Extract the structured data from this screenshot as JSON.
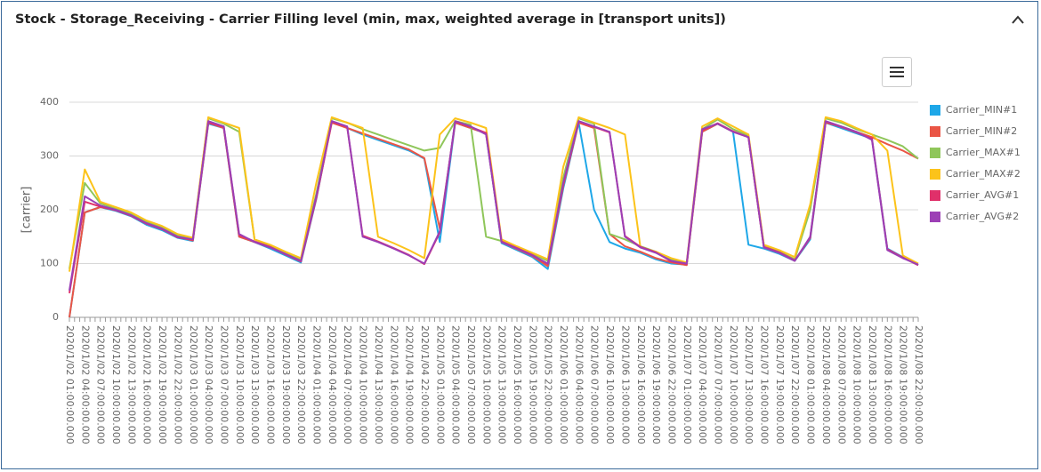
{
  "header": {
    "title": "Stock - Storage_Receiving - Carrier Filling level (min, max, weighted average in [transport units])"
  },
  "chart_data": {
    "type": "line",
    "ylabel": "[carrier]",
    "ylim": [
      0,
      400
    ],
    "yticks": [
      0,
      100,
      200,
      300,
      400
    ],
    "grid": true,
    "legend": "right",
    "categories": [
      "2020/1/02 01:00:00.000",
      "2020/1/02 04:00:00.000",
      "2020/1/02 07:00:00.000",
      "2020/1/02 10:00:00.000",
      "2020/1/02 13:00:00.000",
      "2020/1/02 16:00:00.000",
      "2020/1/02 19:00:00.000",
      "2020/1/02 22:00:00.000",
      "2020/1/03 01:00:00.000",
      "2020/1/03 04:00:00.000",
      "2020/1/03 07:00:00.000",
      "2020/1/03 10:00:00.000",
      "2020/1/03 13:00:00.000",
      "2020/1/03 16:00:00.000",
      "2020/1/03 19:00:00.000",
      "2020/1/03 22:00:00.000",
      "2020/1/04 01:00:00.000",
      "2020/1/04 04:00:00.000",
      "2020/1/04 07:00:00.000",
      "2020/1/04 10:00:00.000",
      "2020/1/04 13:00:00.000",
      "2020/1/04 16:00:00.000",
      "2020/1/04 19:00:00.000",
      "2020/1/04 22:00:00.000",
      "2020/1/05 01:00:00.000",
      "2020/1/05 04:00:00.000",
      "2020/1/05 07:00:00.000",
      "2020/1/05 10:00:00.000",
      "2020/1/05 13:00:00.000",
      "2020/1/05 16:00:00.000",
      "2020/1/05 19:00:00.000",
      "2020/1/05 22:00:00.000",
      "2020/1/06 01:00:00.000",
      "2020/1/06 04:00:00.000",
      "2020/1/06 07:00:00.000",
      "2020/1/06 10:00:00.000",
      "2020/1/06 13:00:00.000",
      "2020/1/06 16:00:00.000",
      "2020/1/06 19:00:00.000",
      "2020/1/06 22:00:00.000",
      "2020/1/07 01:00:00.000",
      "2020/1/07 04:00:00.000",
      "2020/1/07 07:00:00.000",
      "2020/1/07 10:00:00.000",
      "2020/1/07 13:00:00.000",
      "2020/1/07 16:00:00.000",
      "2020/1/07 19:00:00.000",
      "2020/1/07 22:00:00.000",
      "2020/1/08 01:00:00.000",
      "2020/1/08 04:00:00.000",
      "2020/1/08 07:00:00.000",
      "2020/1/08 10:00:00.000",
      "2020/1/08 13:00:00.000",
      "2020/1/08 16:00:00.000",
      "2020/1/08 19:00:00.000",
      "2020/1/08 22:00:00.000"
    ],
    "series": [
      {
        "name": "Carrier_MIN#1",
        "color": "#1ea7e8",
        "values": [
          0,
          195,
          205,
          198,
          188,
          172,
          162,
          148,
          142,
          360,
          352,
          150,
          140,
          128,
          115,
          102,
          220,
          365,
          352,
          340,
          330,
          320,
          310,
          295,
          140,
          362,
          352,
          342,
          138,
          125,
          112,
          90,
          240,
          362,
          200,
          140,
          128,
          120,
          108,
          100,
          98,
          345,
          360,
          345,
          135,
          128,
          118,
          105,
          145,
          362,
          352,
          342,
          332,
          128,
          112,
          97
        ]
      },
      {
        "name": "Carrier_MIN#2",
        "color": "#ea5545",
        "values": [
          0,
          195,
          205,
          200,
          190,
          175,
          165,
          150,
          143,
          362,
          352,
          150,
          140,
          130,
          118,
          104,
          222,
          362,
          352,
          342,
          332,
          322,
          312,
          296,
          165,
          362,
          352,
          342,
          140,
          127,
          114,
          95,
          245,
          362,
          352,
          155,
          132,
          122,
          110,
          102,
          97,
          345,
          360,
          345,
          335,
          130,
          120,
          105,
          148,
          362,
          355,
          345,
          335,
          322,
          310,
          295
        ]
      },
      {
        "name": "Carrier_MAX#1",
        "color": "#8fc65a",
        "values": [
          90,
          250,
          212,
          202,
          192,
          178,
          168,
          152,
          148,
          370,
          360,
          345,
          145,
          133,
          120,
          108,
          230,
          370,
          362,
          350,
          340,
          330,
          320,
          310,
          315,
          365,
          358,
          150,
          142,
          130,
          118,
          105,
          260,
          370,
          360,
          155,
          145,
          132,
          122,
          108,
          100,
          350,
          368,
          350,
          338,
          135,
          122,
          108,
          200,
          370,
          362,
          350,
          340,
          330,
          318,
          295
        ]
      },
      {
        "name": "Carrier_MAX#2",
        "color": "#fcc31a",
        "values": [
          85,
          275,
          215,
          205,
          195,
          180,
          170,
          155,
          148,
          372,
          362,
          352,
          145,
          135,
          122,
          110,
          250,
          372,
          362,
          352,
          150,
          138,
          125,
          110,
          340,
          370,
          362,
          352,
          145,
          132,
          120,
          108,
          280,
          372,
          362,
          352,
          340,
          130,
          122,
          110,
          102,
          355,
          370,
          355,
          340,
          135,
          125,
          112,
          210,
          372,
          365,
          352,
          340,
          310,
          115,
          100
        ]
      },
      {
        "name": "Carrier_AVG#1",
        "color": "#e0306a",
        "values": [
          45,
          215,
          206,
          199,
          189,
          174,
          164,
          149,
          144,
          362,
          354,
          153,
          141,
          131,
          117,
          104,
          222,
          364,
          354,
          152,
          141,
          129,
          116,
          99,
          158,
          364,
          354,
          343,
          141,
          129,
          116,
          99,
          248,
          364,
          354,
          344,
          151,
          131,
          121,
          104,
          99,
          348,
          361,
          346,
          335,
          131,
          121,
          106,
          148,
          364,
          354,
          344,
          332,
          127,
          111,
          97
        ]
      },
      {
        "name": "Carrier_AVG#2",
        "color": "#9c3fb5",
        "values": [
          50,
          225,
          208,
          200,
          190,
          175,
          165,
          150,
          145,
          365,
          355,
          155,
          140,
          130,
          118,
          105,
          225,
          365,
          355,
          150,
          140,
          128,
          115,
          100,
          160,
          365,
          355,
          340,
          140,
          128,
          115,
          100,
          250,
          365,
          355,
          345,
          150,
          130,
          120,
          105,
          100,
          350,
          360,
          345,
          335,
          130,
          120,
          105,
          150,
          365,
          355,
          345,
          330,
          125,
          110,
          98
        ]
      }
    ]
  }
}
